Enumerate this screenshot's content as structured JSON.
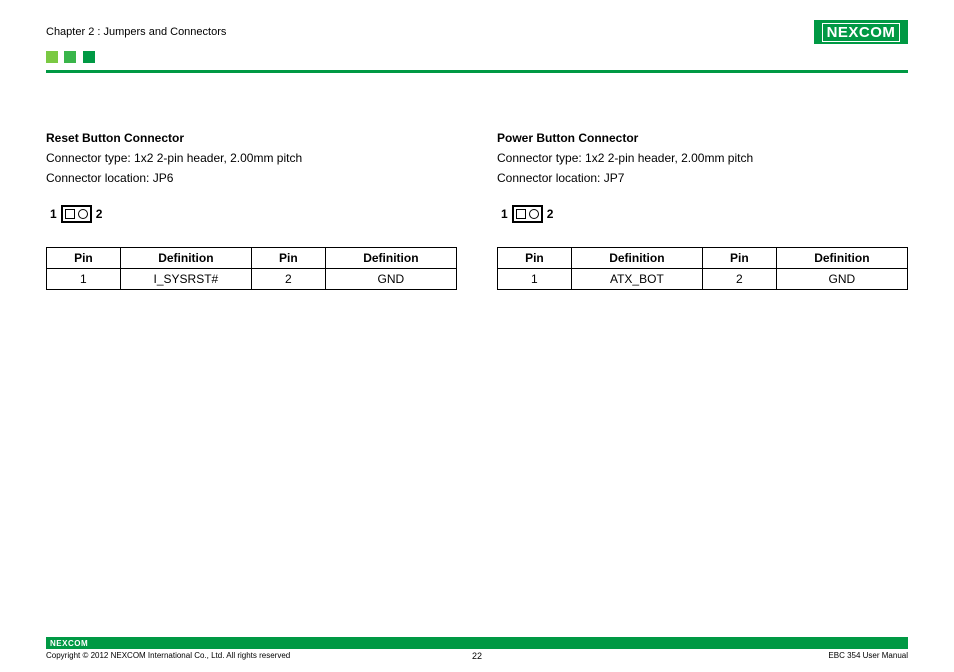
{
  "header": {
    "chapter": "Chapter 2 : Jumpers and Connectors",
    "logo_text": "NEXCOM",
    "logo_bg": "#009944",
    "logo_fg": "#ffffff",
    "squares": [
      "#7ac943",
      "#39b54a",
      "#009944"
    ],
    "bar_color": "#009944"
  },
  "left": {
    "title": "Reset Button Connector",
    "type_line": "Connector type: 1x2 2-pin header, 2.00mm pitch",
    "location_line": "Connector location: JP6",
    "diagram": {
      "left_label": "1",
      "right_label": "2",
      "pins": [
        "square",
        "circle"
      ]
    },
    "table": {
      "headers": [
        "Pin",
        "Definition",
        "Pin",
        "Definition"
      ],
      "rows": [
        [
          "1",
          "I_SYSRST#",
          "2",
          "GND"
        ]
      ]
    }
  },
  "right": {
    "title": "Power Button Connector",
    "type_line": "Connector type: 1x2 2-pin header, 2.00mm pitch",
    "location_line": "Connector location: JP7",
    "diagram": {
      "left_label": "1",
      "right_label": "2",
      "pins": [
        "square",
        "circle"
      ]
    },
    "table": {
      "headers": [
        "Pin",
        "Definition",
        "Pin",
        "Definition"
      ],
      "rows": [
        [
          "1",
          "ATX_BOT",
          "2",
          "GND"
        ]
      ]
    }
  },
  "footer": {
    "logo_text": "NEXCOM",
    "copyright": "Copyright © 2012 NEXCOM International Co., Ltd. All rights reserved",
    "page_number": "22",
    "doc_title": "EBC 354 User Manual",
    "bar_color": "#009944"
  }
}
